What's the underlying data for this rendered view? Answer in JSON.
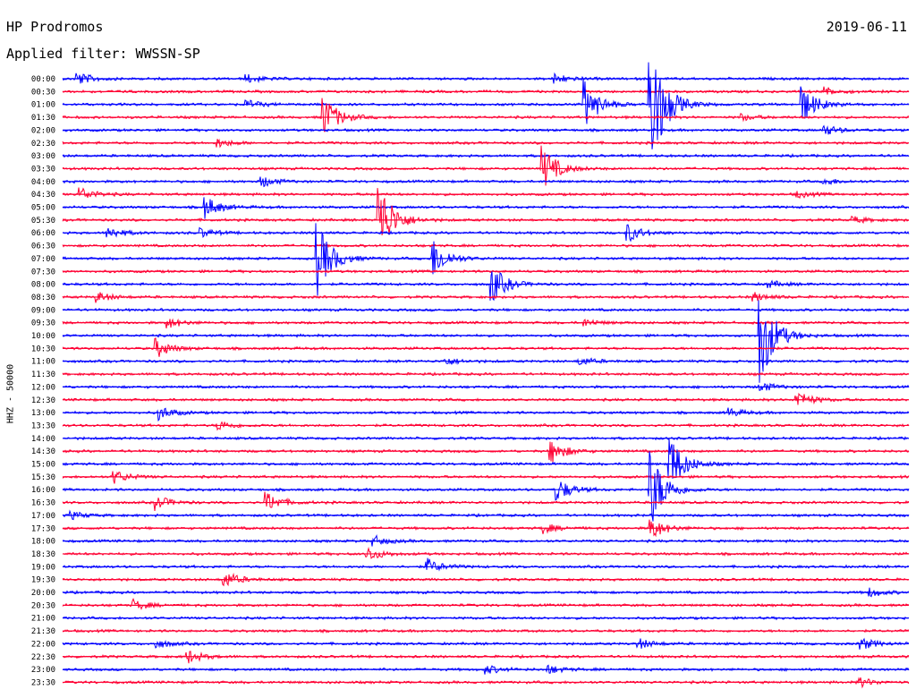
{
  "header": {
    "station": "HP Prodromos",
    "date": "2019-06-11",
    "filter": "Applied filter: WWSSN-SP"
  },
  "channel_label": "HHZ - 50000",
  "colors": {
    "blue": "#0000ff",
    "red": "#ff0033"
  },
  "chart_data": {
    "type": "line",
    "title": "HP Prodromos",
    "subtitle": "Applied filter: WWSSN-SP",
    "ylabel": "HHZ - 50000",
    "y_tick_labels": [
      "00:00",
      "00:30",
      "01:00",
      "01:30",
      "02:00",
      "02:30",
      "03:00",
      "03:30",
      "04:00",
      "04:30",
      "05:00",
      "05:30",
      "06:00",
      "06:30",
      "07:00",
      "07:30",
      "08:00",
      "08:30",
      "09:00",
      "09:30",
      "10:00",
      "10:30",
      "11:00",
      "11:30",
      "12:00",
      "12:30",
      "13:00",
      "13:30",
      "14:00",
      "14:30",
      "15:00",
      "15:30",
      "16:00",
      "16:30",
      "17:00",
      "17:30",
      "18:00",
      "18:30",
      "19:00",
      "19:30",
      "20:00",
      "20:30",
      "21:00",
      "21:30",
      "22:00",
      "22:30",
      "23:00",
      "23:30"
    ],
    "x_range_minutes": [
      0,
      30
    ],
    "trace_colors": [
      "#0000ff",
      "#ff0033"
    ],
    "events": [
      {
        "trace": "00:00",
        "minute": 0.5,
        "amplitude": 8
      },
      {
        "trace": "00:00",
        "minute": 6.5,
        "amplitude": 5
      },
      {
        "trace": "00:00",
        "minute": 17.4,
        "amplitude": 6
      },
      {
        "trace": "00:30",
        "minute": 27.0,
        "amplitude": 5
      },
      {
        "trace": "01:00",
        "minute": 18.5,
        "amplitude": 28
      },
      {
        "trace": "01:00",
        "minute": 20.8,
        "amplitude": 90
      },
      {
        "trace": "01:00",
        "minute": 26.2,
        "amplitude": 22
      },
      {
        "trace": "01:00",
        "minute": 6.5,
        "amplitude": 5
      },
      {
        "trace": "01:30",
        "minute": 9.2,
        "amplitude": 28
      },
      {
        "trace": "01:30",
        "minute": 24.0,
        "amplitude": 4
      },
      {
        "trace": "02:00",
        "minute": 27.0,
        "amplitude": 6
      },
      {
        "trace": "02:30",
        "minute": 5.5,
        "amplitude": 5
      },
      {
        "trace": "03:30",
        "minute": 17.0,
        "amplitude": 26
      },
      {
        "trace": "04:00",
        "minute": 7.0,
        "amplitude": 7
      },
      {
        "trace": "04:00",
        "minute": 27.0,
        "amplitude": 4
      },
      {
        "trace": "04:30",
        "minute": 0.6,
        "amplitude": 8
      },
      {
        "trace": "04:30",
        "minute": 26.0,
        "amplitude": 4
      },
      {
        "trace": "05:00",
        "minute": 5.0,
        "amplitude": 14
      },
      {
        "trace": "05:30",
        "minute": 11.2,
        "amplitude": 48
      },
      {
        "trace": "05:30",
        "minute": 28.0,
        "amplitude": 4
      },
      {
        "trace": "06:00",
        "minute": 1.6,
        "amplitude": 7
      },
      {
        "trace": "06:00",
        "minute": 4.9,
        "amplitude": 5
      },
      {
        "trace": "06:00",
        "minute": 20.0,
        "amplitude": 11
      },
      {
        "trace": "07:00",
        "minute": 9.0,
        "amplitude": 44
      },
      {
        "trace": "07:00",
        "minute": 13.1,
        "amplitude": 24
      },
      {
        "trace": "08:00",
        "minute": 15.2,
        "amplitude": 22
      },
      {
        "trace": "08:00",
        "minute": 25.0,
        "amplitude": 4
      },
      {
        "trace": "08:30",
        "minute": 1.2,
        "amplitude": 6
      },
      {
        "trace": "08:30",
        "minute": 24.5,
        "amplitude": 5
      },
      {
        "trace": "09:30",
        "minute": 3.7,
        "amplitude": 6
      },
      {
        "trace": "09:30",
        "minute": 18.5,
        "amplitude": 4
      },
      {
        "trace": "10:00",
        "minute": 24.7,
        "amplitude": 60
      },
      {
        "trace": "10:30",
        "minute": 3.3,
        "amplitude": 11
      },
      {
        "trace": "11:00",
        "minute": 13.5,
        "amplitude": 5
      },
      {
        "trace": "11:00",
        "minute": 18.3,
        "amplitude": 5
      },
      {
        "trace": "12:00",
        "minute": 24.7,
        "amplitude": 6
      },
      {
        "trace": "12:30",
        "minute": 26.0,
        "amplitude": 11
      },
      {
        "trace": "13:00",
        "minute": 3.4,
        "amplitude": 8
      },
      {
        "trace": "13:00",
        "minute": 23.6,
        "amplitude": 5
      },
      {
        "trace": "13:30",
        "minute": 5.5,
        "amplitude": 6
      },
      {
        "trace": "14:30",
        "minute": 17.3,
        "amplitude": 14
      },
      {
        "trace": "15:00",
        "minute": 21.5,
        "amplitude": 36
      },
      {
        "trace": "15:00",
        "minute": 21.6,
        "amplitude": 8
      },
      {
        "trace": "15:30",
        "minute": 1.8,
        "amplitude": 8
      },
      {
        "trace": "16:00",
        "minute": 17.5,
        "amplitude": 14
      },
      {
        "trace": "16:00",
        "minute": 20.8,
        "amplitude": 50
      },
      {
        "trace": "16:30",
        "minute": 3.3,
        "amplitude": 8
      },
      {
        "trace": "16:30",
        "minute": 7.2,
        "amplitude": 12
      },
      {
        "trace": "17:00",
        "minute": 0.3,
        "amplitude": 4
      },
      {
        "trace": "17:30",
        "minute": 17.0,
        "amplitude": 6
      },
      {
        "trace": "17:30",
        "minute": 20.8,
        "amplitude": 14
      },
      {
        "trace": "18:00",
        "minute": 11.0,
        "amplitude": 6
      },
      {
        "trace": "18:30",
        "minute": 10.8,
        "amplitude": 8
      },
      {
        "trace": "19:00",
        "minute": 12.9,
        "amplitude": 9
      },
      {
        "trace": "19:30",
        "minute": 5.7,
        "amplitude": 10
      },
      {
        "trace": "20:00",
        "minute": 28.6,
        "amplitude": 5
      },
      {
        "trace": "20:30",
        "minute": 2.5,
        "amplitude": 6
      },
      {
        "trace": "22:00",
        "minute": 3.3,
        "amplitude": 5
      },
      {
        "trace": "22:00",
        "minute": 20.4,
        "amplitude": 6
      },
      {
        "trace": "22:00",
        "minute": 28.3,
        "amplitude": 7
      },
      {
        "trace": "22:30",
        "minute": 4.4,
        "amplitude": 8
      },
      {
        "trace": "23:00",
        "minute": 15.0,
        "amplitude": 5
      },
      {
        "trace": "23:00",
        "minute": 17.2,
        "amplitude": 5
      },
      {
        "trace": "23:30",
        "minute": 28.2,
        "amplitude": 6
      }
    ]
  }
}
